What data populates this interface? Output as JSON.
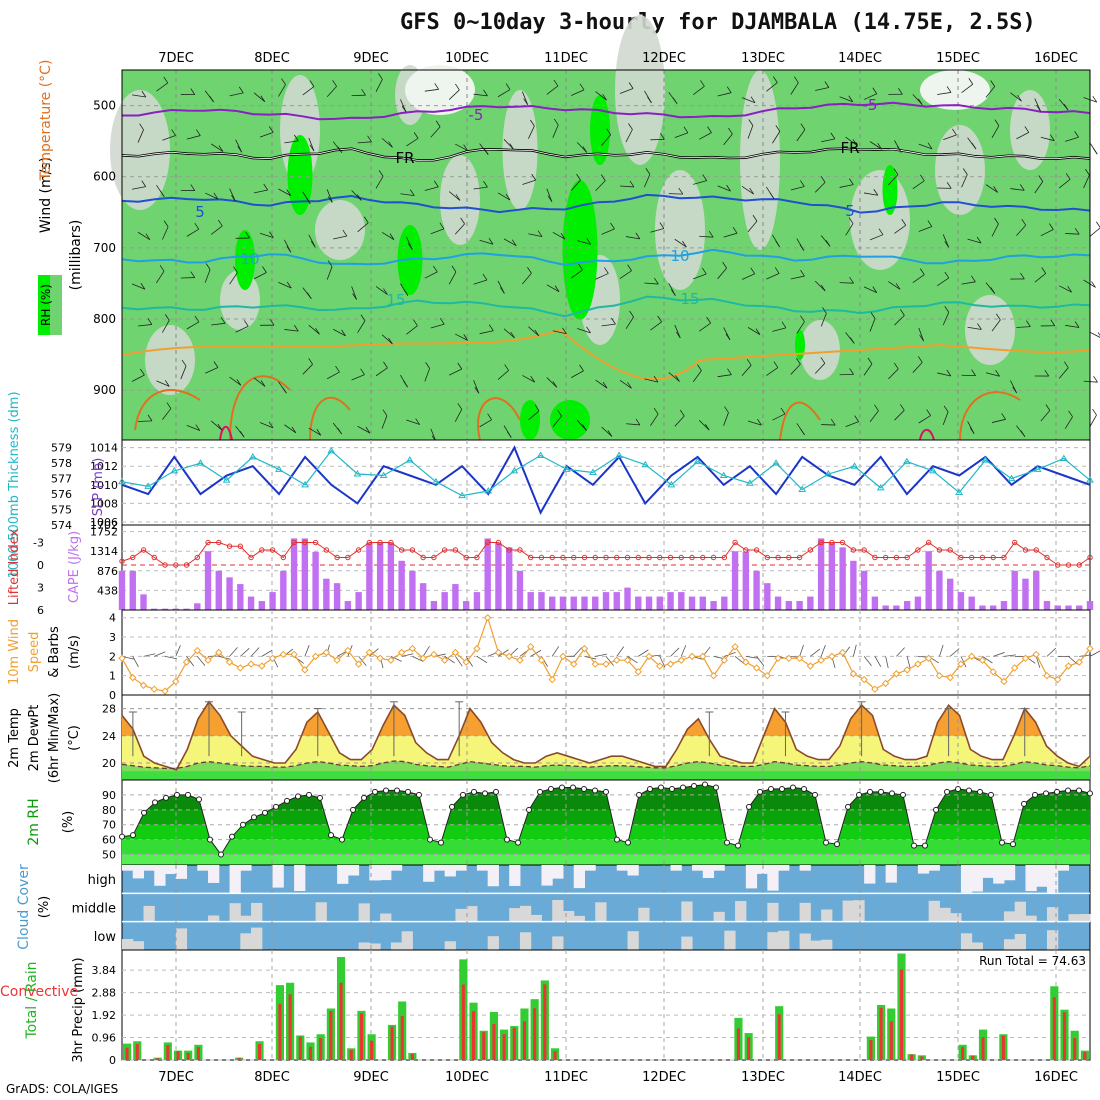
{
  "title": "GFS 0~10day 3-hourly for DJAMBALA (14.75E, 2.5S)",
  "credit": "GrADS: COLA/IGES",
  "run_total_label": "Run Total = 74.63",
  "colors": {
    "rh_light": "#cfd8cf",
    "rh_mid": "#6fd46f",
    "rh_bright": "#00ee00",
    "slp": "#1a35c8",
    "thickness": "#22b8c8",
    "lifted_index": "#e03030",
    "cape": "#c070f0",
    "wind10": "#f0a030",
    "temp_fill": "#f5a030",
    "temp_fill_light": "#f5f57a",
    "dewpt_fill": "#7ddc5a",
    "cloud": "#6aaad6",
    "cloud_gap": "#d8d8d8",
    "precip_total": "#33cc33",
    "precip_conv": "#ee3333"
  },
  "chart_data": [
    {
      "type": "heatmap",
      "name": "upper-air",
      "xtick_labels": [
        "7DEC",
        "8DEC",
        "9DEC",
        "10DEC",
        "11DEC",
        "12DEC",
        "13DEC",
        "14DEC",
        "15DEC",
        "16DEC"
      ],
      "ylabel_parts": [
        "RH (%)",
        "Temperature (°C)",
        "Wind (m/s)"
      ],
      "ylabel_units": "(millibars)",
      "yticks": [
        500,
        600,
        700,
        800,
        900
      ],
      "ylim": [
        970,
        450
      ],
      "contour_labels": [
        "-5",
        "FR",
        "5",
        "10",
        "15"
      ],
      "isotherms": [
        {
          "label": "-5",
          "values": [
            514,
            505,
            512,
            520,
            509,
            500,
            505,
            512,
            517,
            503,
            497,
            500,
            505,
            511
          ]
        },
        {
          "label": "FR",
          "values": [
            570,
            566,
            574,
            561,
            579,
            559,
            571,
            567,
            575,
            565,
            560,
            569,
            572,
            575
          ]
        },
        {
          "label": "5",
          "values": [
            634,
            630,
            640,
            628,
            640,
            648,
            644,
            627,
            630,
            634,
            650,
            636,
            643,
            648
          ]
        },
        {
          "label": "10",
          "values": [
            716,
            720,
            708,
            725,
            716,
            707,
            723,
            714,
            704,
            717,
            710,
            722,
            712,
            711
          ]
        },
        {
          "label": "15",
          "values": [
            784,
            786,
            781,
            788,
            775,
            779,
            795,
            770,
            774,
            788,
            790,
            777,
            783,
            781
          ]
        }
      ]
    },
    {
      "type": "line",
      "name": "thickness-slp",
      "ylabel_left": "1000-500mb Thickness (dm)",
      "ylabel_right": "SLP (mb)",
      "yticks_left": [
        "579",
        "578",
        "577",
        "576",
        "575",
        "574"
      ],
      "yticks_right": [
        "1014",
        "1012",
        "1010",
        "1008",
        "1006"
      ],
      "ylim_left": [
        574,
        579.5
      ],
      "ylim_right": [
        1006,
        1014.5
      ],
      "series": [
        {
          "name": "SLP (mb)",
          "values": [
            1010,
            1009,
            1013,
            1009,
            1011,
            1012,
            1009,
            1013,
            1010,
            1008,
            1012,
            1011,
            1010,
            1012,
            1009,
            1014,
            1007,
            1012,
            1010,
            1013,
            1008,
            1011,
            1013,
            1010,
            1012,
            1009,
            1013,
            1011,
            1010,
            1013,
            1009,
            1012,
            1011,
            1013,
            1010,
            1012,
            1011,
            1010
          ]
        },
        {
          "name": "Thickness (dm)",
          "values": [
            576.8,
            576.5,
            577.5,
            578.0,
            576.9,
            578.4,
            577.6,
            576.6,
            578.8,
            577.3,
            577.2,
            578.2,
            576.8,
            575.9,
            576.2,
            577.5,
            578.5,
            577.6,
            577.4,
            578.5,
            577.9,
            576.6,
            578.1,
            577.2,
            576.7,
            578.0,
            576.3,
            577.3,
            577.8,
            576.4,
            578.1,
            577.5,
            576.1,
            578.2,
            577.0,
            577.6,
            578.3,
            576.9
          ]
        }
      ]
    },
    {
      "type": "bar",
      "name": "lifted-cape",
      "ylabel_left": "Lifted Index",
      "ylabel_right": "CAPE (J/kg)",
      "yticks_left": [
        "-3",
        "0",
        "3",
        "6"
      ],
      "yticks_right": [
        "1752",
        "1314",
        "876",
        "438"
      ],
      "cape_values": [
        876,
        876,
        350,
        30,
        30,
        30,
        30,
        150,
        1314,
        876,
        730,
        580,
        300,
        200,
        400,
        876,
        1600,
        1600,
        1300,
        700,
        600,
        200,
        400,
        1500,
        1500,
        1500,
        1100,
        876,
        600,
        200,
        400,
        580,
        200,
        400,
        1600,
        1500,
        1400,
        876,
        400,
        400,
        300,
        300,
        300,
        300,
        300,
        400,
        400,
        500,
        300,
        300,
        300,
        400,
        400,
        300,
        300,
        200,
        300,
        1314,
        1300,
        876,
        600,
        300,
        200,
        200,
        300,
        1600,
        1500,
        1400,
        1100,
        876,
        300,
        100,
        100,
        200,
        300,
        1314,
        876,
        700,
        400,
        300,
        100,
        100,
        200,
        876,
        700,
        876,
        200,
        100,
        100,
        100,
        200
      ],
      "lifted_values": [
        -0.5,
        -1,
        -2,
        -1,
        0,
        0,
        0,
        -1,
        -3,
        -3,
        -2.5,
        -2.5,
        -1,
        -2,
        -2,
        -1,
        -3,
        -3,
        -3,
        -2,
        -1,
        -1,
        -2,
        -3,
        -3,
        -3,
        -2,
        -2,
        -1,
        -1,
        -2,
        -2,
        -1,
        -1,
        -3,
        -3,
        -2,
        -2,
        -1,
        -1,
        -1,
        -1,
        -1,
        -1,
        -1,
        -1,
        -1,
        -1,
        -1,
        -1,
        -1,
        -1,
        -1,
        -1,
        -1,
        -1,
        -1,
        -3,
        -2,
        -2,
        -1,
        -1,
        -1,
        -1,
        -2,
        -3,
        -3,
        -3,
        -2,
        -2,
        -1,
        -1,
        -1,
        -1,
        -2,
        -3,
        -2,
        -2,
        -1,
        -1,
        -1,
        -1,
        -1,
        -3,
        -2,
        -2,
        -1,
        0,
        0,
        0,
        -1
      ]
    },
    {
      "type": "line",
      "name": "wind10",
      "ylabel": "10m Wind Speed & Barbs (m/s)",
      "yticks": [
        "4",
        "3",
        "2",
        "1",
        "0"
      ],
      "ylim": [
        0,
        4.4
      ],
      "values": [
        1.9,
        0.9,
        0.5,
        0.3,
        0.2,
        0.7,
        1.7,
        2.3,
        1.8,
        2.2,
        1.7,
        1.4,
        1.6,
        1.5,
        1.9,
        2.1,
        2.1,
        1.3,
        2.0,
        2.2,
        1.8,
        2.3,
        1.6,
        2.2,
        1.9,
        1.8,
        2.2,
        2.4,
        1.9,
        2.1,
        1.8,
        2.2,
        1.7,
        2.4,
        4.0,
        2.2,
        2.0,
        1.8,
        2.5,
        1.8,
        0.8,
        2.0,
        1.6,
        2.4,
        1.6,
        1.6,
        1.8,
        1.8,
        1.2,
        2.0,
        1.5,
        1.6,
        1.8,
        2.0,
        2.0,
        1.0,
        1.8,
        2.5,
        1.7,
        1.4,
        1.0,
        1.9,
        1.9,
        1.9,
        1.5,
        1.8,
        2.0,
        2.2,
        1.1,
        0.8,
        0.3,
        0.6,
        1.1,
        1.3,
        1.6,
        1.9,
        1.0,
        0.9,
        1.6,
        2.0,
        1.8,
        1.2,
        0.7,
        1.4,
        1.9,
        2.1,
        1.0,
        0.8,
        1.5,
        1.7,
        2.4
      ]
    },
    {
      "type": "area",
      "name": "temp2m",
      "ylabel": "2m Temp 2m DewPt (6hr Min/Max) (°C)",
      "yticks": [
        "28",
        "24",
        "20"
      ],
      "ylim": [
        17.5,
        30
      ],
      "temp": [
        27,
        25,
        21,
        20,
        19.5,
        19,
        22,
        26.5,
        29,
        27,
        24,
        22.5,
        21,
        20.5,
        20,
        20,
        22,
        26,
        27.5,
        24.5,
        21.5,
        20.5,
        20.5,
        22,
        25.5,
        28.5,
        27,
        23,
        21.5,
        20.5,
        20.5,
        24,
        28,
        26,
        23,
        21.5,
        20.5,
        20,
        20,
        21,
        21.5,
        21,
        20.5,
        20,
        20.5,
        21,
        21,
        20.5,
        20,
        19.5,
        19.5,
        22,
        25,
        26.5,
        23.5,
        21,
        20.5,
        20,
        20,
        24,
        28,
        26,
        22,
        21,
        20.5,
        20.5,
        22.5,
        26.5,
        28.5,
        27,
        22,
        21,
        20.5,
        20.5,
        21,
        26,
        28.5,
        27,
        22,
        21,
        20.5,
        20.5,
        24,
        28,
        26,
        22.5,
        21,
        20,
        19.5,
        21
      ],
      "dewpt": [
        19.8,
        19.6,
        19.4,
        19.3,
        19.2,
        19.2,
        19.5,
        20.0,
        20.2,
        20.0,
        19.8,
        19.6,
        19.5,
        19.5,
        19.4,
        19.4,
        19.6,
        20.0,
        20.2,
        20.0,
        19.7,
        19.6,
        19.5,
        19.6,
        20.0,
        20.3,
        20.2,
        19.8,
        19.6,
        19.5,
        19.4,
        19.8,
        20.2,
        20.0,
        19.8,
        19.6,
        19.5,
        19.5,
        19.4,
        19.6,
        19.7,
        19.6,
        19.5,
        19.4,
        19.5,
        19.6,
        19.6,
        19.5,
        19.4,
        19.3,
        19.3,
        19.6,
        20.0,
        20.2,
        20.0,
        19.7,
        19.6,
        19.5,
        19.5,
        19.8,
        20.2,
        20.0,
        19.7,
        19.6,
        19.5,
        19.5,
        19.7,
        20.0,
        20.2,
        20.0,
        19.7,
        19.6,
        19.5,
        19.5,
        19.6,
        20.0,
        20.2,
        20.0,
        19.7,
        19.6,
        19.5,
        19.5,
        19.8,
        20.2,
        20.0,
        19.7,
        19.6,
        19.4,
        19.3,
        19.6
      ],
      "tmax": [
        null,
        27.5,
        null,
        null,
        null,
        null,
        null,
        null,
        29,
        null,
        null,
        27.5,
        null,
        null,
        null,
        null,
        null,
        null,
        28,
        null,
        null,
        null,
        null,
        null,
        null,
        29,
        null,
        null,
        null,
        null,
        null,
        29,
        null,
        null,
        null,
        null,
        null,
        null,
        null,
        null,
        null,
        null,
        null,
        null,
        null,
        null,
        null,
        null,
        null,
        null,
        null,
        null,
        null,
        null,
        27.5,
        null,
        null,
        null,
        null,
        null,
        null,
        27.5,
        null,
        null,
        null,
        null,
        null,
        null,
        29,
        null,
        null,
        null,
        null,
        null,
        null,
        null,
        28,
        null,
        null,
        null,
        null,
        null,
        null,
        28,
        null,
        null,
        null,
        null,
        null,
        null,
        null
      ]
    },
    {
      "type": "area",
      "name": "rh2m",
      "ylabel": "2m RH (%)",
      "yticks": [
        "90",
        "80",
        "70",
        "60",
        "50"
      ],
      "ylim": [
        43,
        100
      ],
      "values": [
        62,
        63,
        78,
        85,
        88,
        90,
        90,
        87,
        60,
        50,
        62,
        70,
        75,
        78,
        82,
        86,
        89,
        90,
        88,
        63,
        60,
        80,
        88,
        92,
        93,
        93,
        92,
        90,
        60,
        58,
        82,
        90,
        92,
        91,
        92,
        60,
        58,
        80,
        92,
        94,
        95,
        95,
        94,
        93,
        92,
        60,
        58,
        90,
        94,
        95,
        94,
        95,
        96,
        97,
        95,
        58,
        56,
        82,
        92,
        94,
        94,
        95,
        94,
        90,
        58,
        57,
        82,
        90,
        92,
        92,
        91,
        90,
        56,
        56,
        80,
        92,
        94,
        93,
        92,
        90,
        58,
        57,
        84,
        90,
        91,
        92,
        93,
        93,
        91
      ]
    },
    {
      "type": "heatmap",
      "name": "cloud-cover",
      "ylabel": "Cloud Cover (%)",
      "row_labels": [
        "high",
        "middle",
        "low"
      ]
    },
    {
      "type": "bar",
      "name": "precip",
      "ylabel_left": "Total / Rain",
      "ylabel_left2": "Convective",
      "ylabel": "3hr Precip (mm)",
      "yticks": [
        "3.84",
        "2.88",
        "1.92",
        "0.96",
        "0"
      ],
      "ylim": [
        0,
        4.7
      ],
      "total": [
        0.7,
        0.8,
        0,
        0.1,
        0.75,
        0.4,
        0.4,
        0.65,
        0,
        0,
        0,
        0.1,
        0,
        0.8,
        0,
        3.2,
        3.3,
        1.05,
        0.75,
        1.1,
        2.2,
        4.4,
        0.5,
        2.1,
        1.1,
        0,
        1.5,
        2.5,
        0.3,
        0,
        0,
        0,
        0,
        4.3,
        2.45,
        1.25,
        2.05,
        1.3,
        1.45,
        2.2,
        2.6,
        3.4,
        0.5,
        0,
        0,
        0,
        0,
        0,
        0,
        0,
        0,
        0,
        0,
        0,
        0,
        0,
        0,
        0,
        0,
        0,
        1.8,
        1.15,
        0,
        0,
        2.3,
        0,
        0,
        0,
        0,
        0,
        0,
        0,
        0,
        1.0,
        2.35,
        2.2,
        4.55,
        0.25,
        0.2,
        0,
        0,
        0,
        0.65,
        0.2,
        1.3,
        0,
        1.1,
        0,
        0,
        0,
        0,
        3.15,
        2.15,
        1.25,
        0.4
      ]
    }
  ]
}
